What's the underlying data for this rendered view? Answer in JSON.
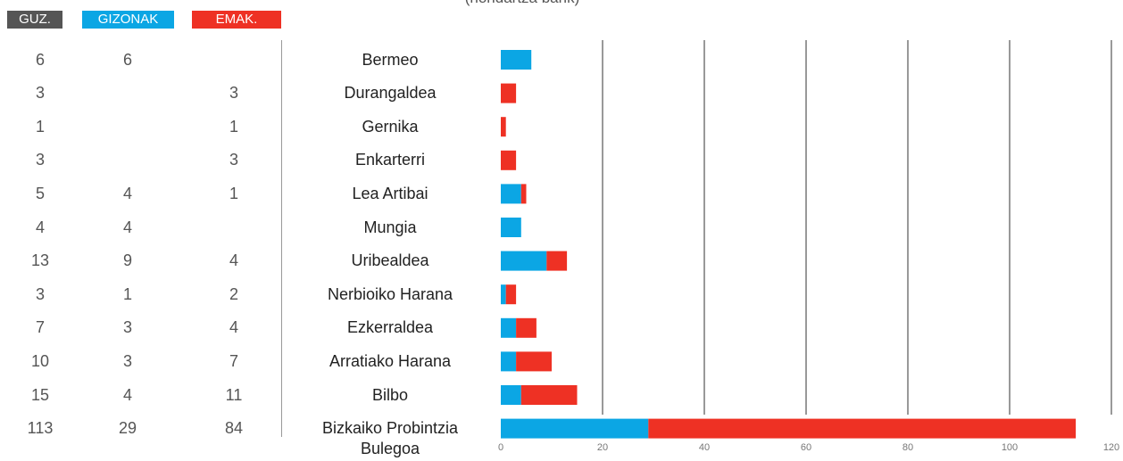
{
  "chart_data": {
    "type": "bar",
    "orientation": "horizontal",
    "stacked": true,
    "subtitle": "(hondartza barik)",
    "categories": [
      "Bermeo",
      "Durangaldea",
      "Gernika",
      "Enkarterri",
      "Lea Artibai",
      "Mungia",
      "Uribealdea",
      "Nerbioiko Harana",
      "Ezkerraldea",
      "Arratiako Harana",
      "Bilbo",
      "Bizkaiko Probintzia Bulegoa"
    ],
    "total": {
      "name": "GUZ.",
      "color": "#555555",
      "values": [
        6,
        3,
        1,
        3,
        5,
        4,
        13,
        3,
        7,
        10,
        15,
        113
      ]
    },
    "series": [
      {
        "name": "GIZONAK",
        "color": "#0ba6e4",
        "values": [
          6,
          null,
          null,
          null,
          4,
          4,
          9,
          1,
          3,
          3,
          4,
          29
        ]
      },
      {
        "name": "EMAK.",
        "color": "#ee3124",
        "values": [
          null,
          3,
          1,
          3,
          1,
          null,
          4,
          2,
          4,
          7,
          11,
          84
        ]
      }
    ],
    "xlim": [
      0,
      120
    ],
    "xticks": [
      0,
      20,
      40,
      60,
      80,
      100,
      120
    ],
    "grid": true
  }
}
